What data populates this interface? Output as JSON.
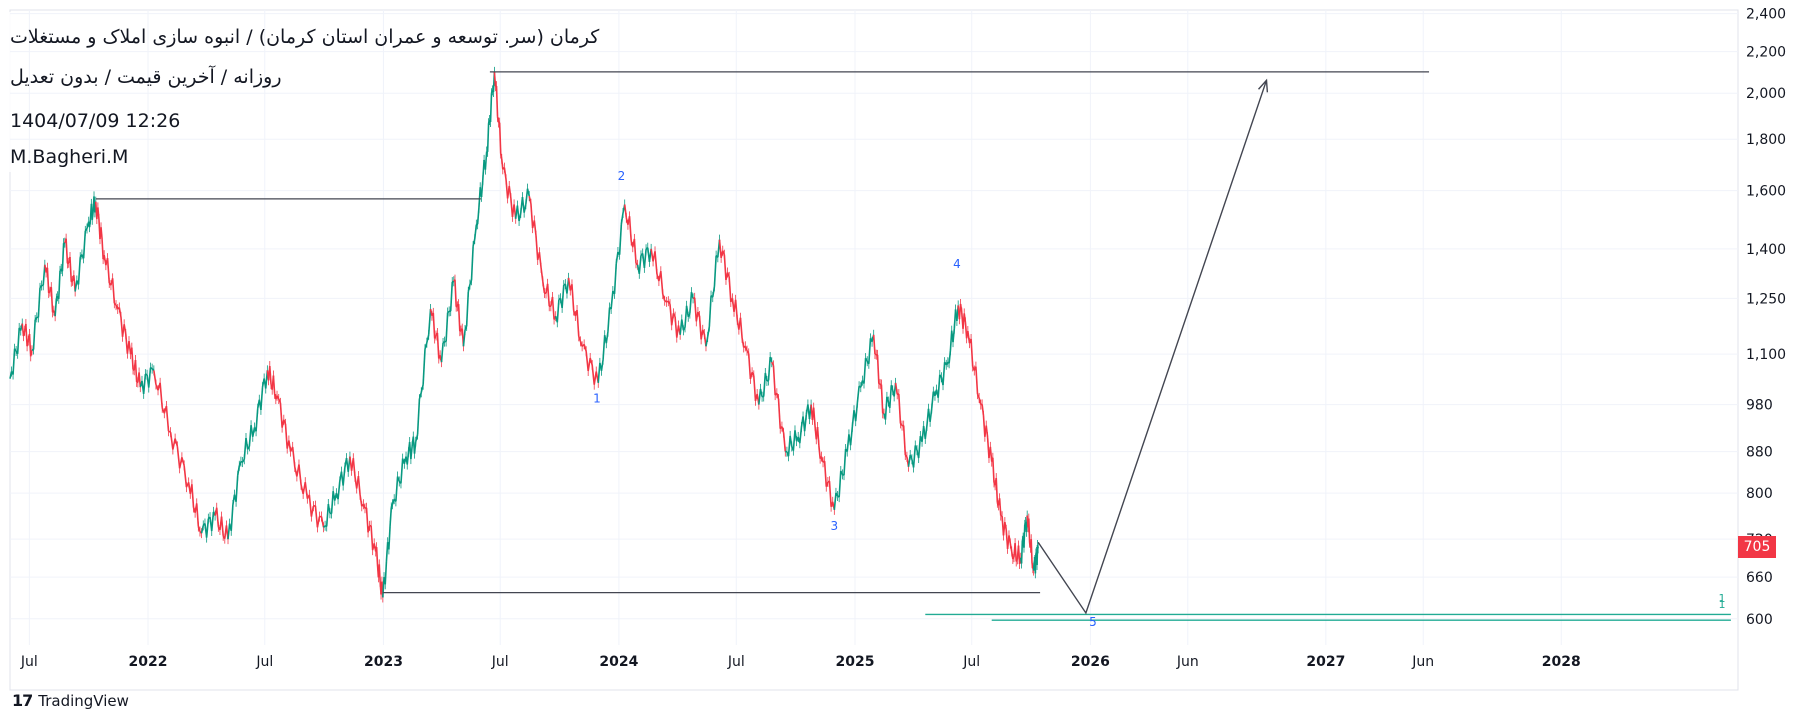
{
  "header": {
    "title": "کرمان (سر. توسعه و عمران استان کرمان) / انبوه سازی املاک و مستغلات",
    "subtitle": "روزانه / آخرین قیمت / بدون تعدیل",
    "timestamp": "1404/07/09 12:26",
    "author": "M.Bagheri.M"
  },
  "brand": {
    "icon": "tradingview-logo-icon",
    "name": "TradingView"
  },
  "colors": {
    "up": "#089981",
    "down": "#f23645",
    "wave_label": "#2962ff",
    "line": "#434651",
    "teal_line": "#22ab94",
    "grid": "#f0f3fa"
  },
  "chart_data": {
    "type": "line",
    "price_scale": "log",
    "last_price": 705,
    "last_price_label": "705",
    "y_ticks": [
      600,
      660,
      720,
      800,
      880,
      980,
      1100,
      1250,
      1400,
      1600,
      1800,
      2000,
      2200,
      2400
    ],
    "y_tick_labels": [
      "600",
      "660",
      "720",
      "800",
      "880",
      "980",
      "1,100",
      "1,250",
      "1,400",
      "1,600",
      "1,800",
      "2,000",
      "2,200",
      "2,400"
    ],
    "x_ticks": [
      {
        "label": "Jul",
        "date": "2021-07-01",
        "bold": false
      },
      {
        "label": "2022",
        "date": "2022-01-01",
        "bold": true
      },
      {
        "label": "Jul",
        "date": "2022-07-01",
        "bold": false
      },
      {
        "label": "2023",
        "date": "2023-01-01",
        "bold": true
      },
      {
        "label": "Jul",
        "date": "2023-07-01",
        "bold": false
      },
      {
        "label": "2024",
        "date": "2024-01-01",
        "bold": true
      },
      {
        "label": "Jul",
        "date": "2024-07-01",
        "bold": false
      },
      {
        "label": "2025",
        "date": "2025-01-01",
        "bold": true
      },
      {
        "label": "Jul",
        "date": "2025-07-01",
        "bold": false
      },
      {
        "label": "2026",
        "date": "2026-01-01",
        "bold": true
      },
      {
        "label": "Jun",
        "date": "2026-06-01",
        "bold": false
      },
      {
        "label": "2027",
        "date": "2027-01-01",
        "bold": true
      },
      {
        "label": "Jun",
        "date": "2027-06-01",
        "bold": false
      },
      {
        "label": "2028",
        "date": "2028-01-01",
        "bold": true
      }
    ],
    "x_range": [
      "2021-06-01",
      "2028-10-01"
    ],
    "y_range": [
      565,
      2420
    ],
    "price_series": [
      [
        "2021-06-01",
        1040
      ],
      [
        "2021-06-20",
        1180
      ],
      [
        "2021-07-05",
        1110
      ],
      [
        "2021-07-25",
        1350
      ],
      [
        "2021-08-10",
        1200
      ],
      [
        "2021-08-25",
        1420
      ],
      [
        "2021-09-10",
        1270
      ],
      [
        "2021-10-01",
        1490
      ],
      [
        "2021-10-12",
        1560
      ],
      [
        "2021-10-25",
        1380
      ],
      [
        "2021-11-15",
        1220
      ],
      [
        "2021-12-05",
        1100
      ],
      [
        "2021-12-20",
        1020
      ],
      [
        "2022-01-10",
        1060
      ],
      [
        "2022-02-05",
        920
      ],
      [
        "2022-03-05",
        820
      ],
      [
        "2022-03-25",
        730
      ],
      [
        "2022-04-15",
        760
      ],
      [
        "2022-05-05",
        720
      ],
      [
        "2022-05-25",
        860
      ],
      [
        "2022-06-15",
        930
      ],
      [
        "2022-07-05",
        1060
      ],
      [
        "2022-07-20",
        1000
      ],
      [
        "2022-08-10",
        880
      ],
      [
        "2022-09-05",
        790
      ],
      [
        "2022-09-30",
        740
      ],
      [
        "2022-10-20",
        800
      ],
      [
        "2022-11-10",
        870
      ],
      [
        "2022-12-01",
        780
      ],
      [
        "2022-12-20",
        700
      ],
      [
        "2022-12-31",
        630
      ],
      [
        "2023-01-15",
        780
      ],
      [
        "2023-02-05",
        870
      ],
      [
        "2023-02-20",
        900
      ],
      [
        "2023-03-15",
        1220
      ],
      [
        "2023-04-01",
        1080
      ],
      [
        "2023-04-20",
        1300
      ],
      [
        "2023-05-05",
        1120
      ],
      [
        "2023-05-25",
        1480
      ],
      [
        "2023-06-10",
        1750
      ],
      [
        "2023-06-22",
        2100
      ],
      [
        "2023-07-05",
        1680
      ],
      [
        "2023-07-25",
        1500
      ],
      [
        "2023-08-15",
        1580
      ],
      [
        "2023-09-05",
        1300
      ],
      [
        "2023-09-25",
        1200
      ],
      [
        "2023-10-15",
        1310
      ],
      [
        "2023-11-05",
        1120
      ],
      [
        "2023-11-30",
        1030
      ],
      [
        "2023-12-20",
        1220
      ],
      [
        "2024-01-10",
        1550
      ],
      [
        "2024-01-30",
        1350
      ],
      [
        "2024-02-20",
        1400
      ],
      [
        "2024-03-15",
        1240
      ],
      [
        "2024-04-05",
        1150
      ],
      [
        "2024-04-25",
        1250
      ],
      [
        "2024-05-15",
        1120
      ],
      [
        "2024-06-05",
        1430
      ],
      [
        "2024-06-25",
        1250
      ],
      [
        "2024-07-15",
        1120
      ],
      [
        "2024-08-05",
        980
      ],
      [
        "2024-08-25",
        1080
      ],
      [
        "2024-09-15",
        880
      ],
      [
        "2024-10-05",
        910
      ],
      [
        "2024-10-25",
        980
      ],
      [
        "2024-11-10",
        870
      ],
      [
        "2024-11-30",
        770
      ],
      [
        "2024-12-20",
        880
      ],
      [
        "2025-01-10",
        1020
      ],
      [
        "2025-01-30",
        1150
      ],
      [
        "2025-02-15",
        960
      ],
      [
        "2025-03-05",
        1030
      ],
      [
        "2025-03-25",
        850
      ],
      [
        "2025-04-15",
        900
      ],
      [
        "2025-05-05",
        1000
      ],
      [
        "2025-05-25",
        1080
      ],
      [
        "2025-06-10",
        1230
      ],
      [
        "2025-06-25",
        1160
      ],
      [
        "2025-07-15",
        980
      ],
      [
        "2025-08-01",
        860
      ],
      [
        "2025-08-15",
        760
      ],
      [
        "2025-09-01",
        700
      ],
      [
        "2025-09-15",
        690
      ],
      [
        "2025-09-25",
        760
      ],
      [
        "2025-10-05",
        670
      ],
      [
        "2025-10-12",
        705
      ]
    ],
    "annotations": {
      "wave_labels": [
        {
          "label": "1",
          "date": "2023-11-28",
          "price": 985
        },
        {
          "label": "2",
          "date": "2024-01-05",
          "price": 1640
        },
        {
          "label": "3",
          "date": "2024-11-30",
          "price": 735
        },
        {
          "label": "4",
          "date": "2025-06-08",
          "price": 1340
        },
        {
          "label": "5",
          "date": "2026-01-05",
          "price": 590
        }
      ],
      "end_labels": [
        "1",
        "1"
      ],
      "hlines": [
        {
          "from": "2021-10-12",
          "to": "2023-06-01",
          "price": 1570
        },
        {
          "from": "2023-06-15",
          "to": "2027-06-10",
          "price": 2100
        },
        {
          "from": "2022-12-31",
          "to": "2025-10-15",
          "price": 637
        }
      ],
      "teal_lines": [
        {
          "from": "2025-04-20",
          "to": "2028-09-20",
          "price": 606
        },
        {
          "from": "2025-08-01",
          "to": "2028-09-20",
          "price": 598
        }
      ],
      "projection_path": [
        [
          "2025-10-12",
          715
        ],
        [
          "2025-12-25",
          608
        ],
        [
          "2026-10-01",
          2060
        ]
      ]
    }
  }
}
